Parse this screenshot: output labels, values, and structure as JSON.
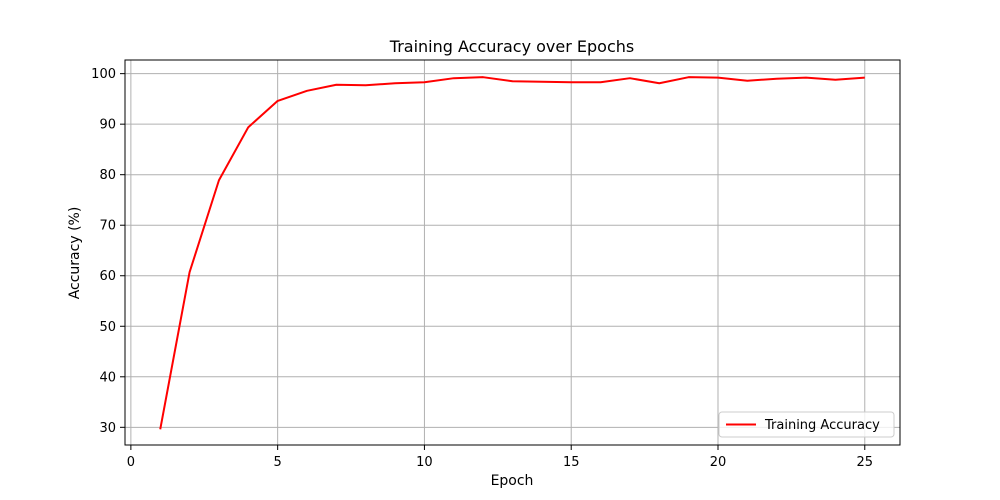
{
  "chart_data": {
    "type": "line",
    "title": "Training Accuracy over Epochs",
    "xlabel": "Epoch",
    "ylabel": "Accuracy (%)",
    "xlim": [
      -0.2,
      26.2
    ],
    "ylim": [
      26.5,
      102.7
    ],
    "xticks": [
      0,
      5,
      10,
      15,
      20,
      25
    ],
    "yticks": [
      30,
      40,
      50,
      60,
      70,
      80,
      90,
      100
    ],
    "grid": true,
    "legend_position": "lower-right",
    "series": [
      {
        "name": "Training Accuracy",
        "color": "#ff0000",
        "x": [
          1,
          2,
          3,
          4,
          5,
          6,
          7,
          8,
          9,
          10,
          11,
          12,
          13,
          14,
          15,
          16,
          17,
          18,
          19,
          20,
          21,
          22,
          23,
          24,
          25
        ],
        "values": [
          29.6,
          60.7,
          78.9,
          89.4,
          94.6,
          96.6,
          97.8,
          97.7,
          98.1,
          98.3,
          99.1,
          99.3,
          98.5,
          98.4,
          98.3,
          98.3,
          99.1,
          98.1,
          99.3,
          99.2,
          98.6,
          99.0,
          99.2,
          98.8,
          99.2
        ]
      }
    ]
  }
}
